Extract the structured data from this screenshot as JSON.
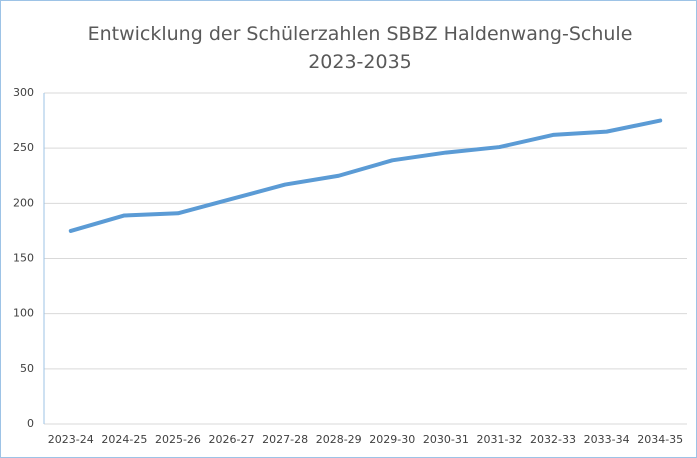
{
  "chart_data": {
    "type": "line",
    "title": "Entwicklung der Schülerzahlen SBBZ Haldenwang-Schule 2023-2035",
    "categories": [
      "2023-24",
      "2024-25",
      "2025-26",
      "2026-27",
      "2027-28",
      "2028-29",
      "2029-30",
      "2030-31",
      "2031-32",
      "2032-33",
      "2033-34",
      "2034-35"
    ],
    "series": [
      {
        "name": "Schülerzahlen",
        "color": "#5b9bd5",
        "values": [
          175,
          189,
          191,
          204,
          217,
          225,
          239,
          246,
          251,
          262,
          265,
          275
        ]
      }
    ],
    "ylim": [
      0,
      300
    ],
    "yticks": [
      0,
      50,
      100,
      150,
      200,
      250,
      300
    ],
    "grid": true
  }
}
